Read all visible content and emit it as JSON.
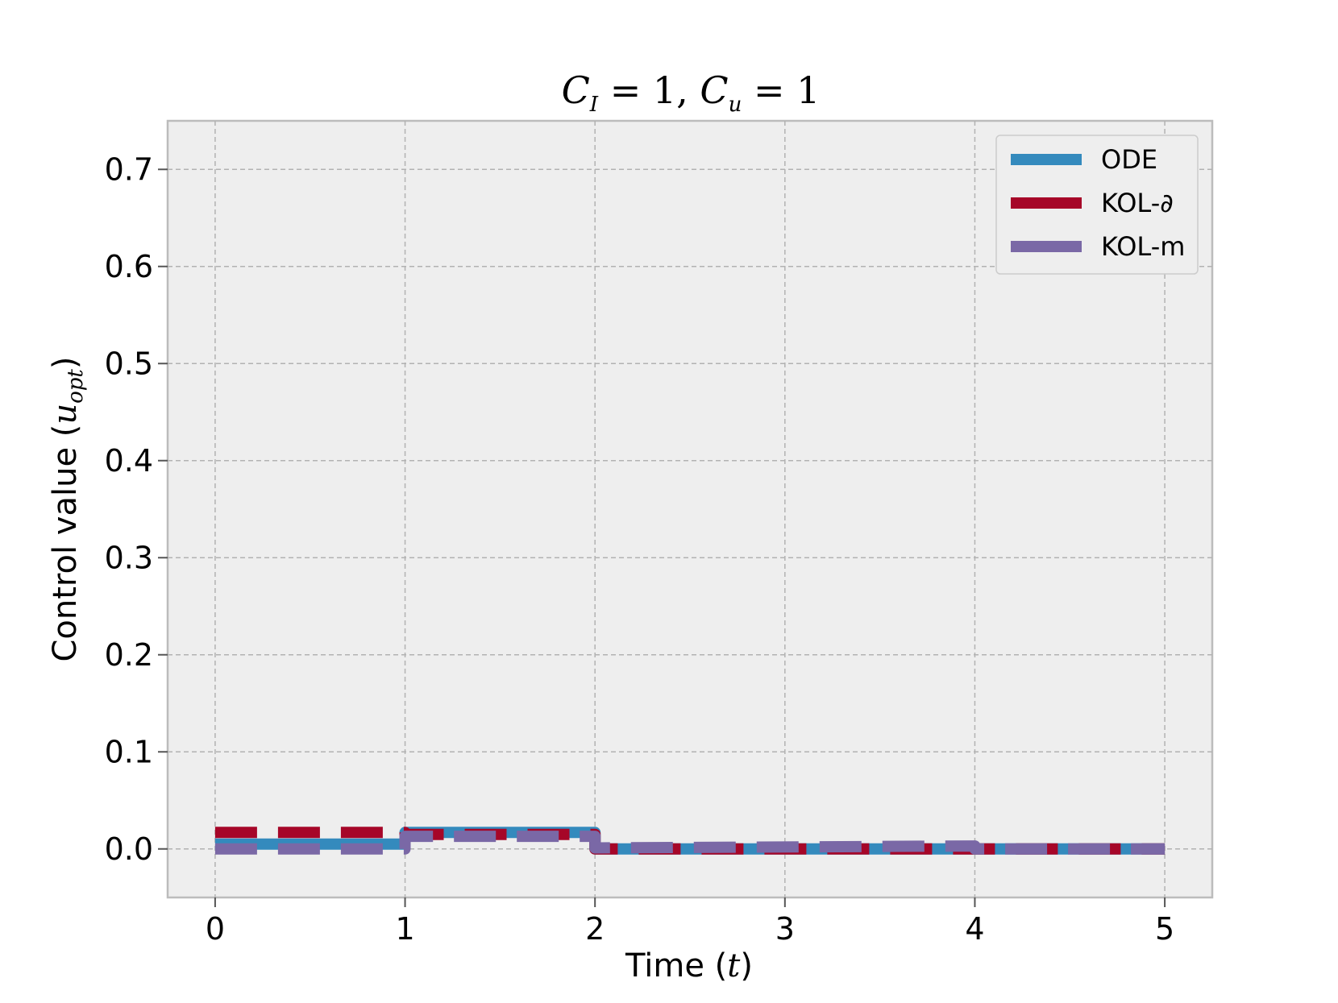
{
  "chart_data": {
    "type": "line",
    "title": "C_I = 1, C_u = 1",
    "title_parts": {
      "a": "C",
      "a_sub": "I",
      "a_val": " = 1, ",
      "b": "C",
      "b_sub": "u",
      "b_val": " = 1"
    },
    "xlabel": "Time (t)",
    "xlabel_parts": {
      "text": "Time (",
      "var": "t",
      "close": ")"
    },
    "ylabel": "Control value (u_opt)",
    "ylabel_parts": {
      "text": "Control value (",
      "var": "u",
      "sub": "opt",
      "close": ")"
    },
    "xlim": [
      -0.25,
      5.25
    ],
    "ylim": [
      -0.05,
      0.75
    ],
    "xticks": [
      "0",
      "1",
      "2",
      "3",
      "4",
      "5"
    ],
    "yticks": [
      "0.0",
      "0.1",
      "0.2",
      "0.3",
      "0.4",
      "0.5",
      "0.6",
      "0.7"
    ],
    "grid": true,
    "legend_position": "top-right",
    "series": [
      {
        "name": "ODE",
        "color": "#348ABD",
        "style": "solid",
        "x": [
          0,
          1,
          1,
          2,
          2,
          5
        ],
        "y": [
          0.005,
          0.005,
          0.017,
          0.017,
          0.0,
          0.0
        ]
      },
      {
        "name": "KOL-∂",
        "color": "#A60628",
        "style": "dashed",
        "x": [
          0,
          1,
          1,
          2,
          2,
          5
        ],
        "y": [
          0.017,
          0.017,
          0.015,
          0.015,
          0.0,
          0.0
        ]
      },
      {
        "name": "KOL-m",
        "color": "#7A68A6",
        "style": "dashed",
        "x": [
          0,
          1,
          1,
          2,
          2,
          4,
          4,
          5
        ],
        "y": [
          0.0,
          0.0,
          0.013,
          0.013,
          0.001,
          0.003,
          0.0,
          0.0
        ]
      }
    ]
  }
}
